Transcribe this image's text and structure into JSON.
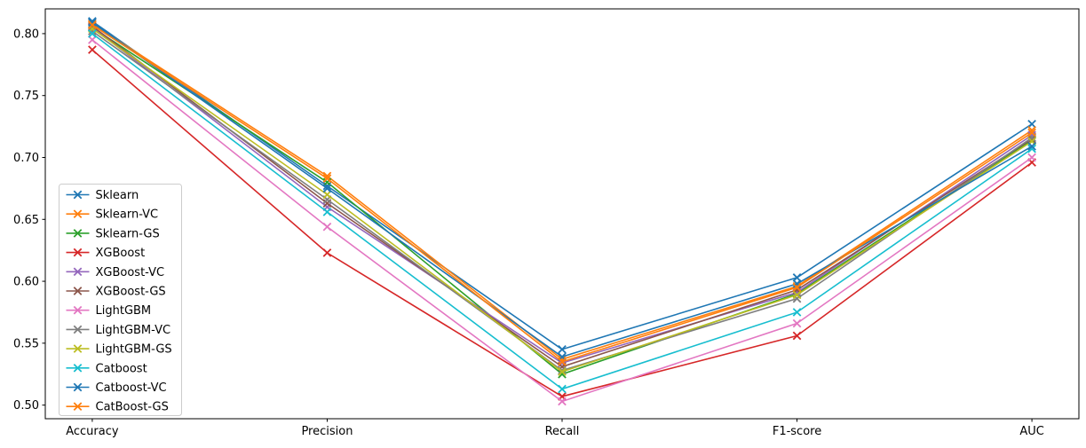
{
  "figure": {
    "background": "#ffffff",
    "text_color": "#000000",
    "spine_color": "#000000"
  },
  "chart_data": {
    "type": "line",
    "title": "",
    "xlabel": "",
    "ylabel": "",
    "grid": false,
    "marker": "x",
    "legend_position": "center-left",
    "categories": [
      "Accuracy",
      "Precision",
      "Recall",
      "F1-score",
      "AUC"
    ],
    "y_ticks": [
      "0.50",
      "0.55",
      "0.60",
      "0.65",
      "0.70",
      "0.75",
      "0.80"
    ],
    "y_tick_values": [
      0.5,
      0.55,
      0.6,
      0.65,
      0.7,
      0.75,
      0.8
    ],
    "ylim": [
      0.489,
      0.82
    ],
    "xlim": [
      -0.2,
      4.2
    ],
    "series": [
      {
        "name": "Sklearn",
        "color": "#1f77b4",
        "values": [
          0.81,
          0.677,
          0.545,
          0.603,
          0.727
        ]
      },
      {
        "name": "Sklearn-VC",
        "color": "#ff7f0e",
        "values": [
          0.808,
          0.685,
          0.537,
          0.596,
          0.722
        ]
      },
      {
        "name": "Sklearn-GS",
        "color": "#2ca02c",
        "values": [
          0.805,
          0.68,
          0.525,
          0.59,
          0.714
        ]
      },
      {
        "name": "XGBoost",
        "color": "#d62728",
        "values": [
          0.787,
          0.623,
          0.507,
          0.556,
          0.696
        ]
      },
      {
        "name": "XGBoost-VC",
        "color": "#9467bd",
        "values": [
          0.805,
          0.66,
          0.534,
          0.591,
          0.718
        ]
      },
      {
        "name": "XGBoost-GS",
        "color": "#8c564b",
        "values": [
          0.806,
          0.663,
          0.531,
          0.593,
          0.715
        ]
      },
      {
        "name": "LightGBM",
        "color": "#e377c2",
        "values": [
          0.795,
          0.644,
          0.503,
          0.566,
          0.7
        ]
      },
      {
        "name": "LightGBM-VC",
        "color": "#7f7f7f",
        "values": [
          0.802,
          0.666,
          0.528,
          0.586,
          0.716
        ]
      },
      {
        "name": "LightGBM-GS",
        "color": "#bcbd22",
        "values": [
          0.804,
          0.67,
          0.527,
          0.589,
          0.713
        ]
      },
      {
        "name": "Catboost",
        "color": "#17becf",
        "values": [
          0.8,
          0.656,
          0.513,
          0.575,
          0.707
        ]
      },
      {
        "name": "Catboost-VC",
        "color": "#1f77b4",
        "values": [
          0.809,
          0.675,
          0.539,
          0.598,
          0.709
        ]
      },
      {
        "name": "CatBoost-GS",
        "color": "#ff7f0e",
        "values": [
          0.807,
          0.683,
          0.535,
          0.595,
          0.72
        ]
      }
    ]
  }
}
